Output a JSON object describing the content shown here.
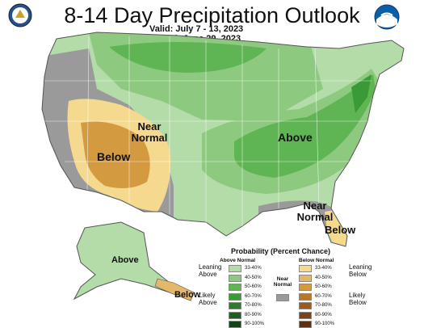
{
  "title": "8-14 Day Precipitation Outlook",
  "valid": "Valid:  July 7 - 13, 2023",
  "issued": "Issued:  June 29, 2023",
  "labels": {
    "above_east": "Above",
    "below_west": "Below",
    "near_normal_west_1": "Near",
    "near_normal_west_2": "Normal",
    "near_normal_se_1": "Near",
    "near_normal_se_2": "Normal",
    "below_florida": "Below",
    "above_alaska": "Above",
    "below_alaska": "Below"
  },
  "legend": {
    "title": "Probability (Percent Chance)",
    "above_header": "Above Normal",
    "below_header": "Below Normal",
    "near_header_1": "Near",
    "near_header_2": "Normal",
    "leaning_above": "Leaning Above",
    "likely_above": "Likely Above",
    "leaning_below": "Leaning Below",
    "likely_below": "Likely Below",
    "above_ranges": [
      "33-40%",
      "40-50%",
      "50-60%",
      "60-70%",
      "70-80%",
      "80-90%",
      "90-100%"
    ],
    "below_ranges": [
      "33-40%",
      "40-50%",
      "50-60%",
      "60-70%",
      "70-80%",
      "80-90%",
      "90-100%"
    ],
    "above_colors": [
      "#b3dca9",
      "#8dc97f",
      "#5fb553",
      "#3b9a38",
      "#2b7d2a",
      "#1e5f1f",
      "#134415"
    ],
    "below_colors": [
      "#f5d98f",
      "#e3b86a",
      "#d39a3f",
      "#b9772a",
      "#9c5a1f",
      "#7d4318",
      "#5e2f12"
    ],
    "near_color": "#9a9a9a"
  },
  "colors": {
    "above_33_40": "#b3dca9",
    "above_40_50": "#8dc97f",
    "above_50_60": "#5fb553",
    "below_33_40": "#f5d98f",
    "below_40_50": "#e3b86a",
    "below_50_60": "#d39a3f",
    "near_normal": "#9a9a9a"
  }
}
